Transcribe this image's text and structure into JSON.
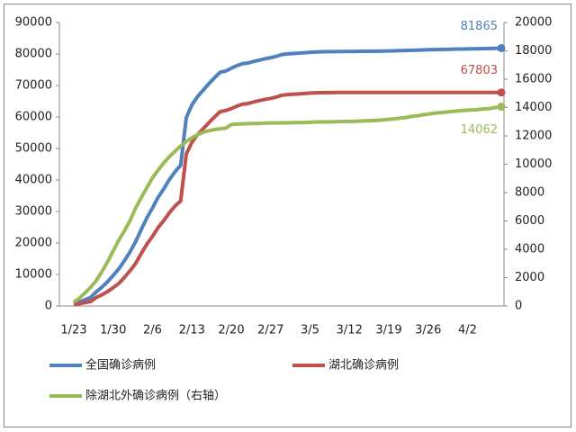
{
  "chart_data": {
    "type": "line",
    "categories": [
      "1/23",
      null,
      null,
      null,
      null,
      null,
      null,
      "1/30",
      null,
      null,
      null,
      null,
      null,
      null,
      "2/6",
      null,
      null,
      null,
      null,
      null,
      null,
      "2/13",
      null,
      null,
      null,
      null,
      null,
      null,
      "2/20",
      null,
      null,
      null,
      null,
      null,
      null,
      "2/27",
      null,
      null,
      null,
      null,
      null,
      null,
      "3/5",
      null,
      null,
      null,
      null,
      null,
      null,
      "3/12",
      null,
      null,
      null,
      null,
      null,
      null,
      "3/19",
      null,
      null,
      null,
      null,
      null,
      null,
      "3/26",
      null,
      null,
      null,
      null,
      null,
      null,
      "4/2",
      null,
      null,
      null,
      null,
      null,
      null
    ],
    "series": [
      {
        "name": "全国确诊病例",
        "color": "#4f81bd",
        "values": [
          830,
          1287,
          1975,
          2744,
          4515,
          5974,
          7711,
          9692,
          11791,
          14380,
          17205,
          20438,
          24324,
          28018,
          31161,
          34546,
          37198,
          40171,
          42638,
          44653,
          59804,
          63851,
          66492,
          68500,
          70548,
          72436,
          74185,
          74576,
          75465,
          76288,
          76936,
          77150,
          77658,
          78064,
          78497,
          78824,
          79251,
          79824,
          80026,
          80151,
          80270,
          80409,
          80552,
          80651,
          80695,
          80735,
          80754,
          80778,
          80793,
          80813,
          80824,
          80844,
          80860,
          80881,
          80894,
          80928,
          80967,
          81008,
          81054,
          81093,
          81171,
          81218,
          81285,
          81340,
          81394,
          81439,
          81470,
          81518,
          81554,
          81589,
          81620,
          81639,
          81669,
          81708,
          81740,
          81802,
          81865
        ]
      },
      {
        "name": "湖北确诊病例",
        "color": "#c0504d",
        "values": [
          549,
          729,
          1052,
          1423,
          2714,
          3554,
          4586,
          5806,
          7153,
          9074,
          11177,
          13522,
          16678,
          19665,
          22112,
          24953,
          27100,
          29631,
          31728,
          33366,
          48206,
          51986,
          54406,
          56249,
          58182,
          59989,
          61682,
          62031,
          62662,
          63454,
          64084,
          64287,
          64786,
          65187,
          65596,
          65914,
          66337,
          66907,
          67103,
          67217,
          67332,
          67466,
          67592,
          67666,
          67707,
          67743,
          67760,
          67773,
          67781,
          67786,
          67790,
          67794,
          67798,
          67799,
          67800,
          67800,
          67800,
          67800,
          67800,
          67800,
          67800,
          67801,
          67801,
          67801,
          67801,
          67801,
          67801,
          67801,
          67802,
          67802,
          67802,
          67802,
          67803,
          67803,
          67803,
          67803,
          67803
        ]
      },
      {
        "name": "除湖北外确诊病例（右轴）",
        "color": "#9bbb59",
        "axis": "y2",
        "values": [
          281,
          558,
          923,
          1321,
          1801,
          2420,
          3125,
          3886,
          4638,
          5306,
          6028,
          6916,
          7646,
          8353,
          9049,
          9593,
          10098,
          10540,
          10910,
          11287,
          11598,
          11865,
          12086,
          12251,
          12366,
          12447,
          12503,
          12545,
          12803,
          12834,
          12852,
          12863,
          12872,
          12877,
          12901,
          12910,
          12914,
          12917,
          12923,
          12934,
          12938,
          12943,
          12960,
          12985,
          12988,
          12992,
          12994,
          13005,
          13012,
          13027,
          13034,
          13050,
          13062,
          13082,
          13094,
          13128,
          13167,
          13208,
          13254,
          13293,
          13371,
          13417,
          13484,
          13539,
          13593,
          13638,
          13669,
          13717,
          13752,
          13787,
          13818,
          13837,
          13866,
          13905,
          13937,
          13999,
          14062
        ]
      }
    ],
    "ylim": [
      0,
      90000
    ],
    "yticks": [
      0,
      10000,
      20000,
      30000,
      40000,
      50000,
      60000,
      70000,
      80000,
      90000
    ],
    "y2lim": [
      0,
      20000
    ],
    "y2ticks": [
      0,
      2000,
      4000,
      6000,
      8000,
      10000,
      12000,
      14000,
      16000,
      18000,
      20000
    ],
    "legend": "bottom"
  }
}
